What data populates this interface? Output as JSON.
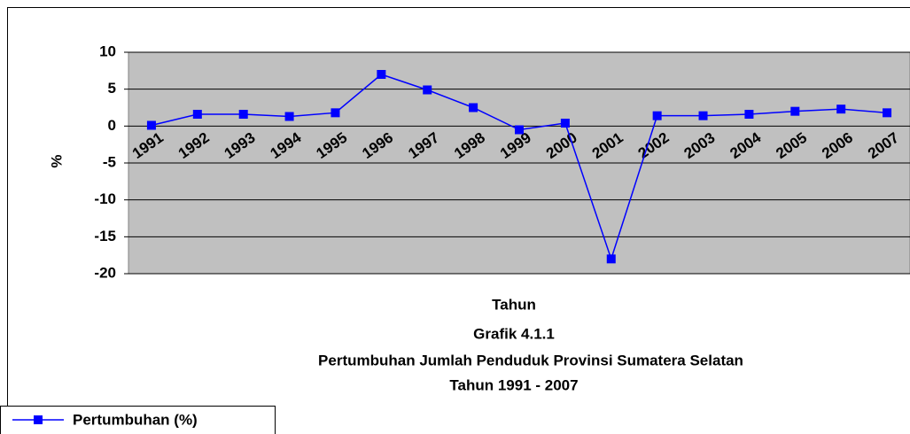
{
  "chart_data": {
    "type": "line",
    "title": [
      "Grafik 4.1.1",
      "Pertumbuhan Jumlah Penduduk Provinsi Sumatera Selatan",
      "Tahun 1991 - 2007"
    ],
    "xlabel": "Tahun",
    "ylabel": "%",
    "categories": [
      "1991",
      "1992",
      "1993",
      "1994",
      "1995",
      "1996",
      "1997",
      "1998",
      "1999",
      "2000",
      "2001",
      "2002",
      "2003",
      "2004",
      "2005",
      "2006",
      "2007"
    ],
    "series": [
      {
        "name": "Pertumbuhan (%)",
        "color": "#0000ff",
        "values": [
          0.1,
          1.6,
          1.6,
          1.3,
          1.8,
          7.0,
          4.9,
          2.5,
          -0.5,
          0.4,
          -18.0,
          1.4,
          1.4,
          1.6,
          2.0,
          2.3,
          1.8
        ]
      }
    ],
    "ylim": [
      -20,
      10
    ],
    "yticks": [
      -20,
      -15,
      -10,
      -5,
      0,
      5,
      10
    ],
    "grid": true,
    "legend": "bottom-left"
  }
}
